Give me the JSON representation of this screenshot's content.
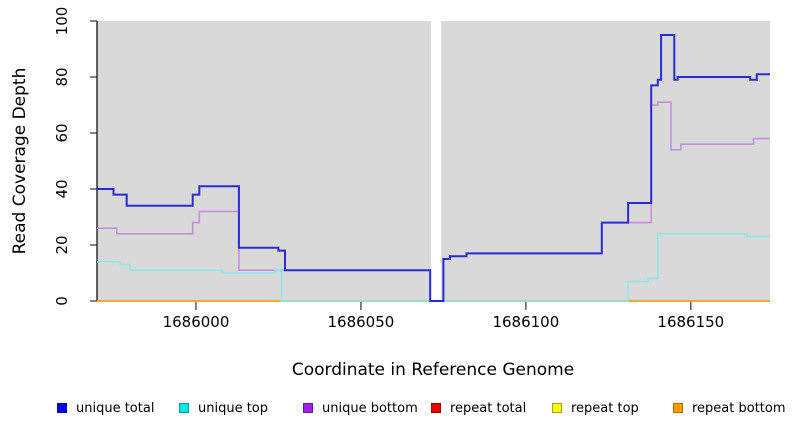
{
  "chart_data": {
    "type": "line",
    "step": true,
    "title": "",
    "xlabel": "Coordinate in Reference Genome",
    "ylabel": "Read Coverage Depth",
    "xlim": [
      1685970,
      1686174
    ],
    "ylim": [
      0,
      100
    ],
    "x_ticks": [
      "1686000",
      "1686050",
      "1686100",
      "1686150"
    ],
    "x_tick_values": [
      1686000,
      1686050,
      1686100,
      1686150
    ],
    "y_ticks": [
      "0",
      "20",
      "40",
      "60",
      "80",
      "100"
    ],
    "y_tick_values": [
      0,
      20,
      40,
      60,
      80,
      100
    ],
    "plot_bg_color": "#D9D9D9",
    "grid": false,
    "legend_position": "bottom",
    "gap_region": {
      "from": 1686071.2,
      "to": 1686074.3,
      "color": "#FFFFFF"
    },
    "zero_overlap_segment": {
      "from": 1686026,
      "to": 1686131,
      "value": 0,
      "color": "#90CC90"
    },
    "series": [
      {
        "name": "repeat total",
        "line_color": "#DD1111",
        "points": [
          [
            1685970,
            0
          ],
          [
            1686174,
            0
          ]
        ]
      },
      {
        "name": "repeat top",
        "line_color": "#F2F27A",
        "points": [
          [
            1685970,
            0
          ],
          [
            1686174,
            0
          ]
        ]
      },
      {
        "name": "repeat bottom",
        "line_color": "#FF9C2B",
        "points": [
          [
            1685970,
            0
          ],
          [
            1686174,
            0
          ]
        ]
      },
      {
        "name": "unique bottom",
        "line_color": "#C48FDE",
        "points": [
          [
            1685970,
            26
          ],
          [
            1685976,
            24
          ],
          [
            1685999,
            28
          ],
          [
            1686001,
            32
          ],
          [
            1686013,
            11
          ],
          [
            1686071,
            0
          ],
          [
            1686075,
            15
          ],
          [
            1686077,
            16
          ],
          [
            1686082,
            17
          ],
          [
            1686123,
            28
          ],
          [
            1686138,
            70
          ],
          [
            1686140,
            71
          ],
          [
            1686144,
            54
          ],
          [
            1686147,
            56
          ],
          [
            1686169,
            58
          ],
          [
            1686174,
            58
          ]
        ]
      },
      {
        "name": "unique top",
        "line_color": "#8FE9EC",
        "points": [
          [
            1685970,
            14
          ],
          [
            1685977,
            13
          ],
          [
            1685980,
            11
          ],
          [
            1686008,
            10
          ],
          [
            1686024,
            11
          ],
          [
            1686026,
            0
          ],
          [
            1686131,
            7
          ],
          [
            1686137,
            8
          ],
          [
            1686140,
            24
          ],
          [
            1686167,
            23
          ],
          [
            1686174,
            23
          ]
        ]
      },
      {
        "name": "unique total",
        "line_color": "#2B2BD5",
        "points": [
          [
            1685970,
            40
          ],
          [
            1685975,
            38
          ],
          [
            1685979,
            34
          ],
          [
            1685999,
            38
          ],
          [
            1686001,
            41
          ],
          [
            1686013,
            19
          ],
          [
            1686025,
            18
          ],
          [
            1686027,
            11
          ],
          [
            1686071,
            0
          ],
          [
            1686075,
            15
          ],
          [
            1686077,
            16
          ],
          [
            1686082,
            17
          ],
          [
            1686123,
            28
          ],
          [
            1686131,
            35
          ],
          [
            1686138,
            77
          ],
          [
            1686140,
            79
          ],
          [
            1686141,
            95
          ],
          [
            1686145,
            79
          ],
          [
            1686146,
            80
          ],
          [
            1686168,
            79
          ],
          [
            1686170,
            81
          ],
          [
            1686174,
            81
          ]
        ]
      }
    ]
  },
  "legend": {
    "items": [
      {
        "label": "unique total",
        "color": "#0000EE",
        "border": "#0000A0"
      },
      {
        "label": "unique top",
        "color": "#00E5E5",
        "border": "#009999"
      },
      {
        "label": "unique bottom",
        "color": "#A020F0",
        "border": "#6E16A8"
      },
      {
        "label": "repeat total",
        "color": "#EE0000",
        "border": "#990000"
      },
      {
        "label": "repeat top",
        "color": "#FFFF00",
        "border": "#A0A000"
      },
      {
        "label": "repeat bottom",
        "color": "#FF9900",
        "border": "#B26B00"
      }
    ]
  }
}
